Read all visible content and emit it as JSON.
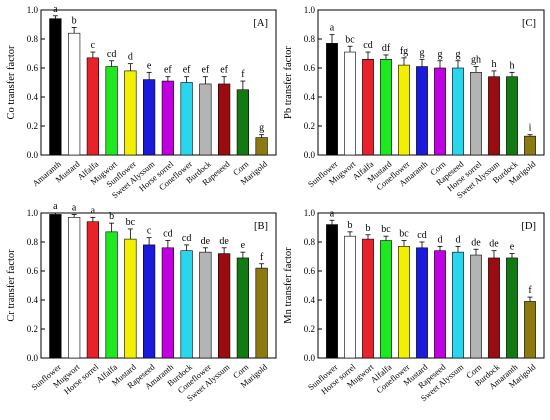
{
  "chart_data": [
    {
      "type": "bar",
      "panel_label": "[A]",
      "ylabel": "Co transfer factor",
      "ylim": [
        0,
        1.0
      ],
      "yticks": [
        0.0,
        0.2,
        0.4,
        0.6,
        0.8,
        1.0
      ],
      "ytick_labels": [
        "0.0",
        "0.2",
        "0.4",
        "0.6",
        "0.8",
        "1.0"
      ],
      "categories": [
        "Amaranth",
        "Mustard",
        "Alfalfa",
        "Mugwort",
        "Sunflower",
        "Sweet Alyssum",
        "Horse sorrel",
        "Coneflower",
        "Burdock",
        "Rapeseed",
        "Corn",
        "Marigold"
      ],
      "values": [
        0.94,
        0.84,
        0.67,
        0.61,
        0.58,
        0.52,
        0.51,
        0.5,
        0.49,
        0.49,
        0.45,
        0.12
      ],
      "errors": [
        0.02,
        0.04,
        0.04,
        0.04,
        0.05,
        0.05,
        0.03,
        0.04,
        0.05,
        0.05,
        0.06,
        0.02
      ],
      "letters": [
        "a",
        "b",
        "c",
        "cd",
        "d",
        "e",
        "ef",
        "ef",
        "ef",
        "ef",
        "f",
        "g"
      ],
      "colors": [
        "#000000",
        "#ffffff",
        "#e8212a",
        "#1ee81e",
        "#f0f000",
        "#1a1adc",
        "#c000e0",
        "#28d6ee",
        "#b4b4b4",
        "#9a0c10",
        "#137a13",
        "#8a7a10"
      ]
    },
    {
      "type": "bar",
      "panel_label": "[C]",
      "ylabel": "Pb transfer factor",
      "ylim": [
        0,
        1.0
      ],
      "yticks": [
        0.0,
        0.2,
        0.4,
        0.6,
        0.8,
        1.0
      ],
      "ytick_labels": [
        "0.0",
        "0.2",
        "0.4",
        "0.6",
        "0.8",
        "1.0"
      ],
      "categories": [
        "Sunflower",
        "Mugwort",
        "Alfalfa",
        "Mustard",
        "Coneflower",
        "Amaranth",
        "Corn",
        "Rapeseed",
        "Horse sorrel",
        "Sweet Alyssum",
        "Burdock",
        "Marigold"
      ],
      "values": [
        0.77,
        0.71,
        0.66,
        0.66,
        0.62,
        0.61,
        0.6,
        0.6,
        0.57,
        0.54,
        0.54,
        0.13
      ],
      "errors": [
        0.06,
        0.04,
        0.05,
        0.03,
        0.05,
        0.05,
        0.05,
        0.05,
        0.04,
        0.04,
        0.03,
        0.01
      ],
      "letters": [
        "a",
        "bc",
        "cd",
        "df",
        "fg",
        "g",
        "g",
        "g",
        "gh",
        "h",
        "h",
        "i"
      ],
      "colors": [
        "#000000",
        "#ffffff",
        "#e8212a",
        "#1ee81e",
        "#f0f000",
        "#1a1adc",
        "#c000e0",
        "#28d6ee",
        "#b4b4b4",
        "#9a0c10",
        "#137a13",
        "#8a7a10"
      ]
    },
    {
      "type": "bar",
      "panel_label": "[B]",
      "ylabel": "Cr transfer factor",
      "ylim": [
        0,
        1.0
      ],
      "yticks": [
        0.0,
        0.2,
        0.4,
        0.6,
        0.8,
        1.0
      ],
      "ytick_labels": [
        "0.0",
        "0.2",
        "0.4",
        "0.6",
        "0.8",
        "1.0"
      ],
      "categories": [
        "Sunflower",
        "Mugwort",
        "Horse sorrel",
        "Alfalfa",
        "Mustard",
        "Rapeseed",
        "Amaranth",
        "Burdock",
        "Coneflower",
        "Sweet Alyssum",
        "Corn",
        "Marigold"
      ],
      "values": [
        0.99,
        0.97,
        0.94,
        0.87,
        0.82,
        0.78,
        0.76,
        0.74,
        0.73,
        0.72,
        0.69,
        0.62
      ],
      "errors": [
        0.01,
        0.02,
        0.03,
        0.06,
        0.07,
        0.05,
        0.05,
        0.04,
        0.03,
        0.04,
        0.04,
        0.03
      ],
      "letters": [
        "a",
        "a",
        "a",
        "b",
        "bc",
        "c",
        "cd",
        "cd",
        "de",
        "de",
        "e",
        "f"
      ],
      "colors": [
        "#000000",
        "#ffffff",
        "#e8212a",
        "#1ee81e",
        "#f0f000",
        "#1a1adc",
        "#c000e0",
        "#28d6ee",
        "#b4b4b4",
        "#9a0c10",
        "#137a13",
        "#8a7a10"
      ]
    },
    {
      "type": "bar",
      "panel_label": "[D]",
      "ylabel": "Mn transfer factor",
      "ylim": [
        0,
        1.0
      ],
      "yticks": [
        0.0,
        0.2,
        0.4,
        0.6,
        0.8,
        1.0
      ],
      "ytick_labels": [
        "0.0",
        "0.2",
        "0.4",
        "0.6",
        "0.8",
        "1.0"
      ],
      "categories": [
        "Sunflower",
        "Horse sorrel",
        "Mugwort",
        "Alfalfa",
        "Coneflower",
        "Mustard",
        "Rapeseed",
        "Sweet Alyssum",
        "Corn",
        "Burdock",
        "Amaranth",
        "Marigold"
      ],
      "values": [
        0.92,
        0.84,
        0.82,
        0.81,
        0.77,
        0.76,
        0.74,
        0.73,
        0.71,
        0.69,
        0.69,
        0.39
      ],
      "errors": [
        0.03,
        0.03,
        0.03,
        0.03,
        0.04,
        0.04,
        0.03,
        0.04,
        0.04,
        0.05,
        0.03,
        0.03
      ],
      "letters": [
        "a",
        "b",
        "b",
        "bc",
        "bc",
        "cd",
        "d",
        "d",
        "de",
        "de",
        "e",
        "f"
      ],
      "colors": [
        "#000000",
        "#ffffff",
        "#e8212a",
        "#1ee81e",
        "#f0f000",
        "#1a1adc",
        "#c000e0",
        "#28d6ee",
        "#b4b4b4",
        "#9a0c10",
        "#137a13",
        "#8a7a10"
      ]
    }
  ]
}
